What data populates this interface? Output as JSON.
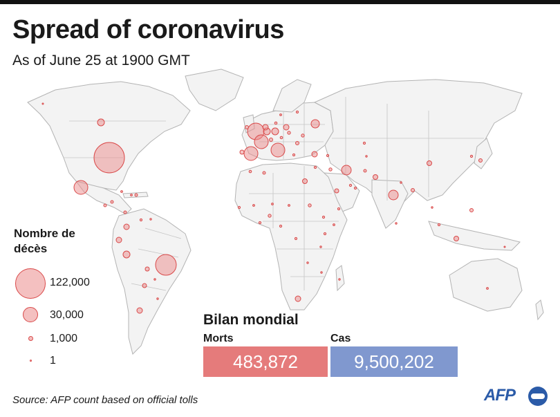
{
  "header": {
    "title": "Spread of coronavirus",
    "subtitle": "As of June 25 at 1900 GMT"
  },
  "legend": {
    "title": "Nombre de décès",
    "items": [
      {
        "label": "122,000",
        "value": 122000
      },
      {
        "label": "30,000",
        "value": 30000
      },
      {
        "label": "1,000",
        "value": 1000
      },
      {
        "label": "1",
        "value": 1
      }
    ]
  },
  "summary": {
    "title": "Bilan mondial",
    "deaths_label": "Morts",
    "deaths_value": "483,872",
    "cases_label": "Cas",
    "cases_value": "9,500,202"
  },
  "source": "Source: AFP count based on official tolls",
  "logo": "AFP",
  "colors": {
    "bubble_fill": "#eb8c8c",
    "bubble_stroke": "#d94848",
    "deaths_box": "#e57b7b",
    "cases_box": "#8098cf",
    "land": "#f2f2f2",
    "border": "#b3b3b3",
    "logo": "#2b5ba8"
  }
}
